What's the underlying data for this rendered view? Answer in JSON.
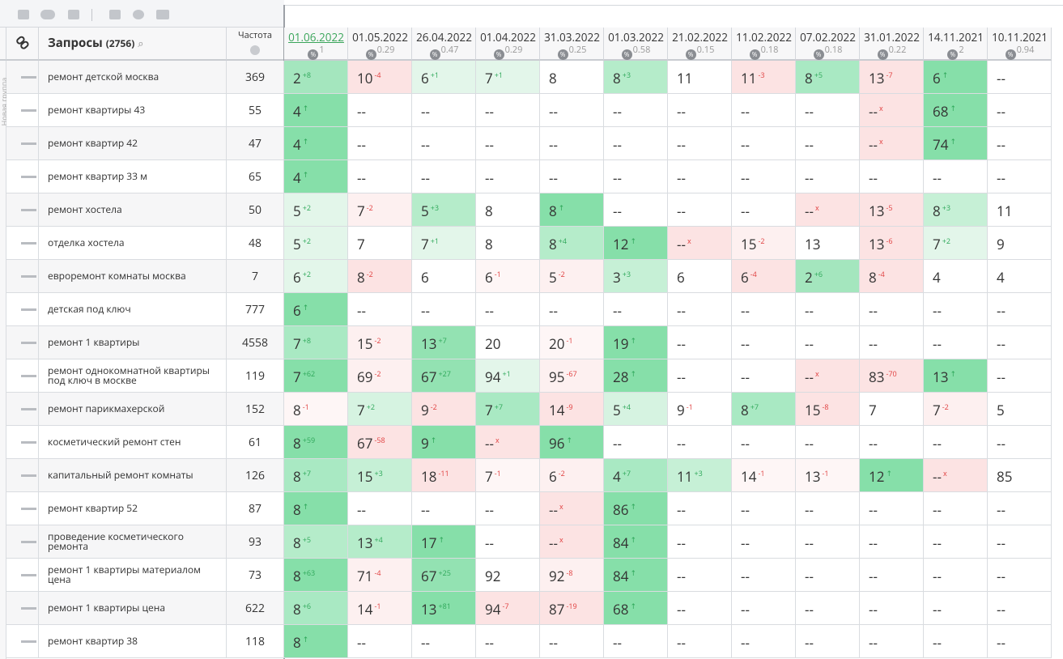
{
  "group_label": "Новая группа",
  "query_header": {
    "title": "Запросы",
    "count": "(2756)"
  },
  "freq_header": "Частота",
  "columns": [
    {
      "date": "01.06.2022",
      "vis": 1
    },
    {
      "date": "01.05.2022",
      "vis": 0.29
    },
    {
      "date": "26.04.2022",
      "vis": 0.47
    },
    {
      "date": "01.04.2022",
      "vis": 0.29
    },
    {
      "date": "31.03.2022",
      "vis": 0.25
    },
    {
      "date": "01.03.2022",
      "vis": 0.58
    },
    {
      "date": "21.02.2022",
      "vis": 0.15
    },
    {
      "date": "11.02.2022",
      "vis": 0.18
    },
    {
      "date": "07.02.2022",
      "vis": 0.18
    },
    {
      "date": "31.01.2022",
      "vis": 0.22
    },
    {
      "date": "14.11.2021",
      "vis": 2
    },
    {
      "date": "10.11.2021",
      "vis": 0.94
    }
  ],
  "table": {
    "rows": [
      {
        "query": "ремонт детской москва",
        "freq": 369,
        "cells": [
          [
            2,
            "+8",
            "#a4e6be"
          ],
          [
            10,
            "-4",
            "#fce3e3"
          ],
          [
            6,
            "+1",
            "#e3f6ea"
          ],
          [
            7,
            "+1",
            "#e3f6ea"
          ],
          [
            8,
            null,
            null
          ],
          [
            8,
            "+3",
            "#b5ecca"
          ],
          [
            11,
            null,
            null
          ],
          [
            11,
            "-3",
            "#fce3e3"
          ],
          [
            8,
            "+5",
            "#a9e9c3"
          ],
          [
            13,
            "-7",
            "#fce3e3"
          ],
          [
            6,
            "↑",
            "#86dfa9"
          ],
          [
            "--",
            null,
            null
          ]
        ]
      },
      {
        "query": "ремонт квартиры 43",
        "freq": 55,
        "cells": [
          [
            4,
            "↑",
            "#86dfa9"
          ],
          [
            "--",
            null,
            null
          ],
          [
            "--",
            null,
            null
          ],
          [
            "--",
            null,
            null
          ],
          [
            "--",
            null,
            null
          ],
          [
            "--",
            null,
            null
          ],
          [
            "--",
            null,
            null
          ],
          [
            "--",
            null,
            null
          ],
          [
            "--",
            null,
            null
          ],
          [
            "--",
            "x",
            "#fce3e3"
          ],
          [
            68,
            "↑",
            "#86dfa9"
          ],
          [
            "--",
            null,
            null
          ]
        ]
      },
      {
        "query": "ремонт квартир 42",
        "freq": 47,
        "cells": [
          [
            4,
            "↑",
            "#86dfa9"
          ],
          [
            "--",
            null,
            null
          ],
          [
            "--",
            null,
            null
          ],
          [
            "--",
            null,
            null
          ],
          [
            "--",
            null,
            null
          ],
          [
            "--",
            null,
            null
          ],
          [
            "--",
            null,
            null
          ],
          [
            "--",
            null,
            null
          ],
          [
            "--",
            null,
            null
          ],
          [
            "--",
            "x",
            "#fce3e3"
          ],
          [
            74,
            "↑",
            "#86dfa9"
          ],
          [
            "--",
            null,
            null
          ]
        ]
      },
      {
        "query": "ремонт квартир 33 м",
        "freq": 65,
        "cells": [
          [
            4,
            "↑",
            "#86dfa9"
          ],
          [
            "--",
            null,
            null
          ],
          [
            "--",
            null,
            null
          ],
          [
            "--",
            null,
            null
          ],
          [
            "--",
            null,
            null
          ],
          [
            "--",
            null,
            null
          ],
          [
            "--",
            null,
            null
          ],
          [
            "--",
            null,
            null
          ],
          [
            "--",
            null,
            null
          ],
          [
            "--",
            null,
            null
          ],
          [
            "--",
            null,
            null
          ],
          [
            "--",
            null,
            null
          ]
        ]
      },
      {
        "query": "ремонт хостела",
        "freq": 50,
        "cells": [
          [
            5,
            "+2",
            "#e3f6ea"
          ],
          [
            7,
            "-2",
            "#fdf0f0"
          ],
          [
            5,
            "+3",
            "#b5ecca"
          ],
          [
            8,
            null,
            null
          ],
          [
            8,
            "↑",
            "#86dfa9"
          ],
          [
            "--",
            null,
            null
          ],
          [
            "--",
            null,
            null
          ],
          [
            "--",
            null,
            null
          ],
          [
            "--",
            "x",
            "#fce3e3"
          ],
          [
            13,
            "-5",
            "#fce3e3"
          ],
          [
            8,
            "+3",
            "#c6f0d6"
          ],
          [
            11,
            null,
            null
          ]
        ]
      },
      {
        "query": "отделка хостела",
        "freq": 48,
        "cells": [
          [
            5,
            "+2",
            "#e3f6ea"
          ],
          [
            7,
            null,
            null
          ],
          [
            7,
            "+1",
            "#e3f6ea"
          ],
          [
            8,
            null,
            null
          ],
          [
            8,
            "+4",
            "#b5ecca"
          ],
          [
            12,
            "↑",
            "#86dfa9"
          ],
          [
            "--",
            "x",
            "#fce3e3"
          ],
          [
            15,
            "-2",
            "#fdf0f0"
          ],
          [
            13,
            null,
            null
          ],
          [
            13,
            "-6",
            "#fce3e3"
          ],
          [
            7,
            "+2",
            "#e3f6ea"
          ],
          [
            9,
            null,
            null
          ]
        ]
      },
      {
        "query": "евроремонт комнаты москва",
        "freq": 7,
        "cells": [
          [
            6,
            "+2",
            "#e3f6ea"
          ],
          [
            8,
            "-2",
            "#fce3e3"
          ],
          [
            6,
            null,
            null
          ],
          [
            6,
            "-1",
            "#fef6f6"
          ],
          [
            5,
            "-2",
            "#fdf0f0"
          ],
          [
            3,
            "+3",
            "#c6f0d6"
          ],
          [
            6,
            null,
            null
          ],
          [
            6,
            "-4",
            "#fce3e3"
          ],
          [
            2,
            "+6",
            "#a4e6be"
          ],
          [
            8,
            "-4",
            "#fce3e3"
          ],
          [
            4,
            null,
            null
          ],
          [
            4,
            null,
            null
          ]
        ]
      },
      {
        "query": "детская под ключ",
        "freq": 777,
        "cells": [
          [
            6,
            "↑",
            "#86dfa9"
          ],
          [
            "--",
            null,
            null
          ],
          [
            "--",
            null,
            null
          ],
          [
            "--",
            null,
            null
          ],
          [
            "--",
            null,
            null
          ],
          [
            "--",
            null,
            null
          ],
          [
            "--",
            null,
            null
          ],
          [
            "--",
            null,
            null
          ],
          [
            "--",
            null,
            null
          ],
          [
            "--",
            null,
            null
          ],
          [
            "--",
            null,
            null
          ],
          [
            "--",
            null,
            null
          ]
        ]
      },
      {
        "query": "ремонт 1 квартиры",
        "freq": 4558,
        "cells": [
          [
            7,
            "+8",
            "#a9e9c3"
          ],
          [
            15,
            "-2",
            "#fdf0f0"
          ],
          [
            13,
            "+7",
            "#93e2b2"
          ],
          [
            20,
            null,
            null
          ],
          [
            20,
            "-1",
            "#fef6f6"
          ],
          [
            19,
            "↑",
            "#86dfa9"
          ],
          [
            "--",
            null,
            null
          ],
          [
            "--",
            null,
            null
          ],
          [
            "--",
            null,
            null
          ],
          [
            "--",
            null,
            null
          ],
          [
            "--",
            null,
            null
          ],
          [
            "--",
            null,
            null
          ]
        ]
      },
      {
        "query": "ремонт однокомнатной квартиры под ключ в москве",
        "freq": 119,
        "cells": [
          [
            7,
            "+62",
            "#86dfa9"
          ],
          [
            69,
            "-2",
            "#fdf0f0"
          ],
          [
            67,
            "+27",
            "#93e2b2"
          ],
          [
            94,
            "+1",
            "#e3f6ea"
          ],
          [
            95,
            "-67",
            "#fdf0f0"
          ],
          [
            28,
            "↑",
            "#86dfa9"
          ],
          [
            "--",
            null,
            null
          ],
          [
            "--",
            null,
            null
          ],
          [
            "--",
            "x",
            "#fce3e3"
          ],
          [
            83,
            "-70",
            "#fce3e3"
          ],
          [
            13,
            "↑",
            "#86dfa9"
          ],
          [
            "--",
            null,
            null
          ]
        ]
      },
      {
        "query": "ремонт парикмахерской",
        "freq": 152,
        "cells": [
          [
            8,
            "-1",
            "#fef6f6"
          ],
          [
            7,
            "+2",
            "#d6f3e1"
          ],
          [
            9,
            "-2",
            "#fce3e3"
          ],
          [
            7,
            "+7",
            "#a9e9c3"
          ],
          [
            14,
            "-9",
            "#fce3e3"
          ],
          [
            5,
            "+4",
            "#d6f3e1"
          ],
          [
            9,
            "-1",
            null
          ],
          [
            8,
            "+7",
            "#a9e9c3"
          ],
          [
            15,
            "-8",
            "#fce3e3"
          ],
          [
            7,
            null,
            null
          ],
          [
            7,
            "-2",
            "#fdf0f0"
          ],
          [
            5,
            null,
            null
          ]
        ]
      },
      {
        "query": "косметический ремонт стен",
        "freq": 61,
        "cells": [
          [
            8,
            "+59",
            "#86dfa9"
          ],
          [
            67,
            "-58",
            "#fce3e3"
          ],
          [
            9,
            "↑",
            "#86dfa9"
          ],
          [
            "--",
            "x",
            "#fce3e3"
          ],
          [
            96,
            "↑",
            "#86dfa9"
          ],
          [
            "--",
            null,
            null
          ],
          [
            "--",
            null,
            null
          ],
          [
            "--",
            null,
            null
          ],
          [
            "--",
            null,
            null
          ],
          [
            "--",
            null,
            null
          ],
          [
            "--",
            null,
            null
          ],
          [
            "--",
            null,
            null
          ]
        ]
      },
      {
        "query": "капитальный ремонт комнаты",
        "freq": 126,
        "cells": [
          [
            8,
            "+7",
            "#a9e9c3"
          ],
          [
            15,
            "+3",
            "#c6f0d6"
          ],
          [
            18,
            "-11",
            "#fce3e3"
          ],
          [
            7,
            "-1",
            "#fef6f6"
          ],
          [
            6,
            "-2",
            "#fdf0f0"
          ],
          [
            4,
            "+7",
            "#a9e9c3"
          ],
          [
            11,
            "+3",
            "#c6f0d6"
          ],
          [
            14,
            "-1",
            "#fef6f6"
          ],
          [
            13,
            "-1",
            "#fef6f6"
          ],
          [
            12,
            "↑",
            "#86dfa9"
          ],
          [
            "--",
            "x",
            "#fce3e3"
          ],
          [
            85,
            null,
            null
          ]
        ]
      },
      {
        "query": "ремонт квартир 52",
        "freq": 87,
        "cells": [
          [
            8,
            "↑",
            "#86dfa9"
          ],
          [
            "--",
            null,
            null
          ],
          [
            "--",
            null,
            null
          ],
          [
            "--",
            null,
            null
          ],
          [
            "--",
            "x",
            "#fce3e3"
          ],
          [
            86,
            "↑",
            "#86dfa9"
          ],
          [
            "--",
            null,
            null
          ],
          [
            "--",
            null,
            null
          ],
          [
            "--",
            null,
            null
          ],
          [
            "--",
            null,
            null
          ],
          [
            "--",
            null,
            null
          ],
          [
            "--",
            null,
            null
          ]
        ]
      },
      {
        "query": "проведение косметического ремонта",
        "freq": 93,
        "cells": [
          [
            8,
            "+5",
            "#b5ecca"
          ],
          [
            13,
            "+4",
            "#b5ecca"
          ],
          [
            17,
            "↑",
            "#86dfa9"
          ],
          [
            "--",
            null,
            null
          ],
          [
            "--",
            "x",
            "#fce3e3"
          ],
          [
            84,
            "↑",
            "#86dfa9"
          ],
          [
            "--",
            null,
            null
          ],
          [
            "--",
            null,
            null
          ],
          [
            "--",
            null,
            null
          ],
          [
            "--",
            null,
            null
          ],
          [
            "--",
            null,
            null
          ],
          [
            "--",
            null,
            null
          ]
        ]
      },
      {
        "query": "ремонт 1 квартиры материалом цена",
        "freq": 73,
        "cells": [
          [
            8,
            "+63",
            "#86dfa9"
          ],
          [
            71,
            "-4",
            "#fdf0f0"
          ],
          [
            67,
            "+25",
            "#93e2b2"
          ],
          [
            92,
            null,
            null
          ],
          [
            92,
            "-8",
            "#fdf0f0"
          ],
          [
            84,
            "↑",
            "#86dfa9"
          ],
          [
            "--",
            null,
            null
          ],
          [
            "--",
            null,
            null
          ],
          [
            "--",
            null,
            null
          ],
          [
            "--",
            null,
            null
          ],
          [
            "--",
            null,
            null
          ],
          [
            "--",
            null,
            null
          ]
        ]
      },
      {
        "query": "ремонт 1 квартиры цена",
        "freq": 622,
        "cells": [
          [
            8,
            "+6",
            "#a9e9c3"
          ],
          [
            14,
            "-1",
            "#fdf0f0"
          ],
          [
            13,
            "+81",
            "#86dfa9"
          ],
          [
            94,
            "-7",
            "#fce3e3"
          ],
          [
            87,
            "-19",
            "#fce3e3"
          ],
          [
            68,
            "↑",
            "#86dfa9"
          ],
          [
            "--",
            null,
            null
          ],
          [
            "--",
            null,
            null
          ],
          [
            "--",
            null,
            null
          ],
          [
            "--",
            null,
            null
          ],
          [
            "--",
            null,
            null
          ],
          [
            "--",
            null,
            null
          ]
        ]
      },
      {
        "query": "ремонт квартир 38",
        "freq": 118,
        "cells": [
          [
            8,
            "↑",
            "#86dfa9"
          ],
          [
            "--",
            null,
            null
          ],
          [
            "--",
            null,
            null
          ],
          [
            "--",
            null,
            null
          ],
          [
            "--",
            null,
            null
          ],
          [
            "--",
            null,
            null
          ],
          [
            "--",
            null,
            null
          ],
          [
            "--",
            null,
            null
          ],
          [
            "--",
            null,
            null
          ],
          [
            "--",
            null,
            null
          ],
          [
            "--",
            null,
            null
          ],
          [
            "--",
            null,
            null
          ]
        ]
      }
    ]
  }
}
